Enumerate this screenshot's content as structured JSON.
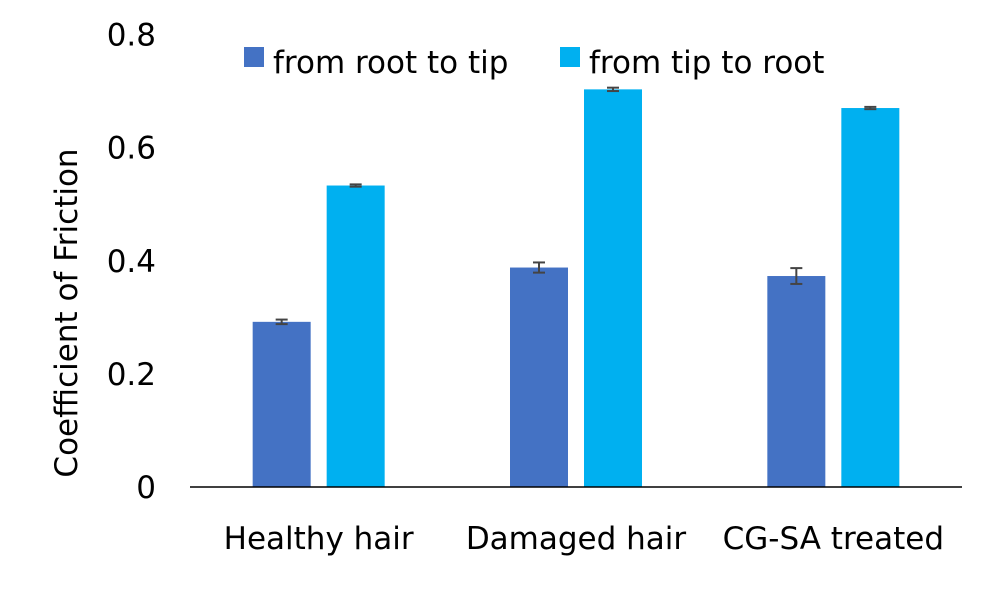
{
  "chart_data": {
    "type": "bar",
    "title": "",
    "xlabel": "",
    "ylabel": "Coefficient of Friction",
    "ylim": [
      0,
      0.8
    ],
    "yticks": [
      "0",
      "0.2",
      "0.4",
      "0.6",
      "0.8"
    ],
    "ytick_values": [
      0,
      0.2,
      0.4,
      0.6,
      0.8
    ],
    "categories": [
      "Healthy hair",
      "Damaged hair",
      "CG-SA treated"
    ],
    "legend_position": "top",
    "grid": false,
    "series": [
      {
        "name": "from root to tip",
        "color": "#4472C4",
        "values": [
          0.292,
          0.388,
          0.373
        ],
        "errors": [
          0.004,
          0.009,
          0.014
        ]
      },
      {
        "name": "from tip to root",
        "color": "#00B0F0",
        "values": [
          0.533,
          0.703,
          0.67
        ],
        "errors": [
          0.002,
          0.003,
          0.002
        ]
      }
    ]
  }
}
